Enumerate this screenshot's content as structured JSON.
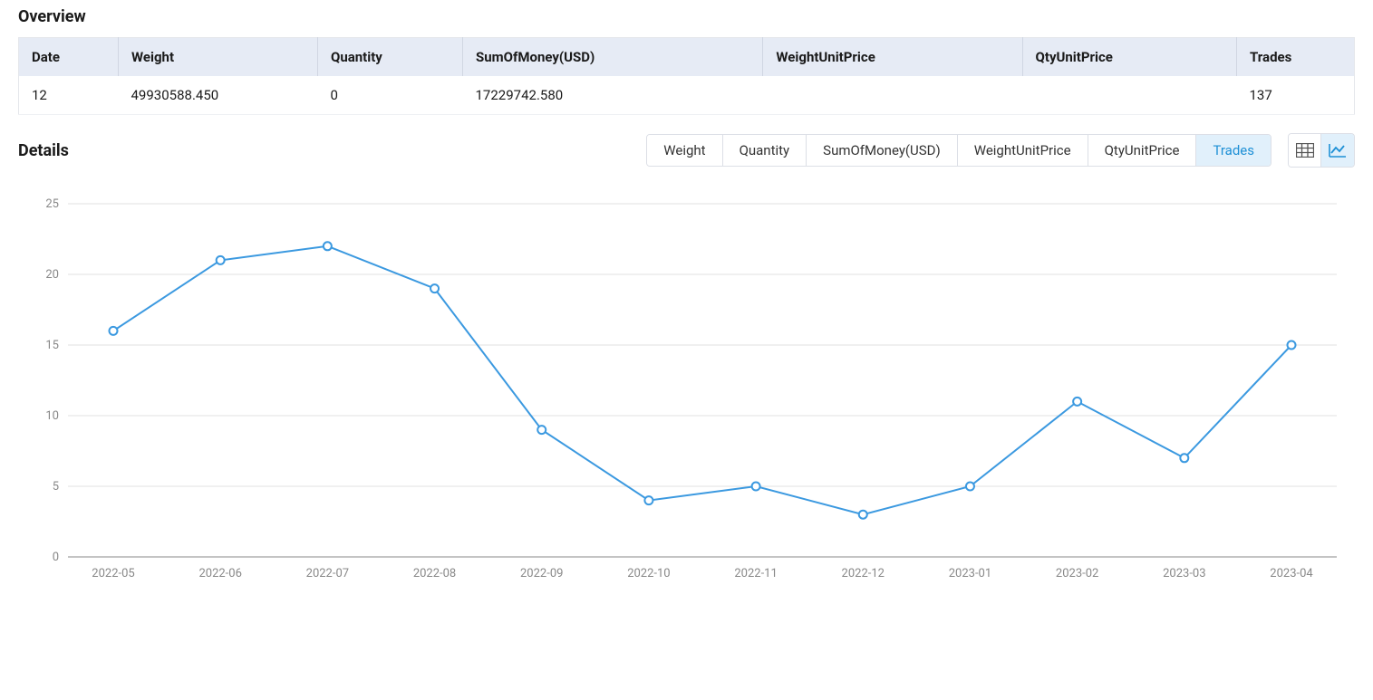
{
  "overview": {
    "title": "Overview",
    "columns": [
      "Date",
      "Weight",
      "Quantity",
      "SumOfMoney(USD)",
      "WeightUnitPrice",
      "QtyUnitPrice",
      "Trades"
    ],
    "row": {
      "date": "12",
      "weight": "49930588.450",
      "quantity": "0",
      "sum_of_money": "17229742.580",
      "weight_unit_price": "",
      "qty_unit_price": "",
      "trades": "137"
    }
  },
  "details": {
    "title": "Details",
    "tabs": [
      "Weight",
      "Quantity",
      "SumOfMoney(USD)",
      "WeightUnitPrice",
      "QtyUnitPrice",
      "Trades"
    ],
    "active_tab": "Trades",
    "view_mode": "chart"
  },
  "chart": {
    "type": "line",
    "categories": [
      "2022-05",
      "2022-06",
      "2022-07",
      "2022-08",
      "2022-09",
      "2022-10",
      "2022-11",
      "2022-12",
      "2023-01",
      "2023-02",
      "2023-03",
      "2023-04"
    ],
    "values": [
      16,
      21,
      22,
      19,
      9,
      4,
      5,
      3,
      5,
      11,
      7,
      15
    ],
    "line_color": "#3b99e0",
    "marker_fill": "#ffffff",
    "marker_stroke": "#3b99e0",
    "marker_radius": 4.5,
    "line_width": 2,
    "yticks": [
      0,
      5,
      10,
      15,
      20,
      25
    ],
    "ylim": [
      0,
      25
    ],
    "axis_label_color": "#888888",
    "grid_color": "#e0e0e0",
    "axis_line_color": "#888888",
    "background_color": "#ffffff",
    "axis_fontsize": 13
  }
}
